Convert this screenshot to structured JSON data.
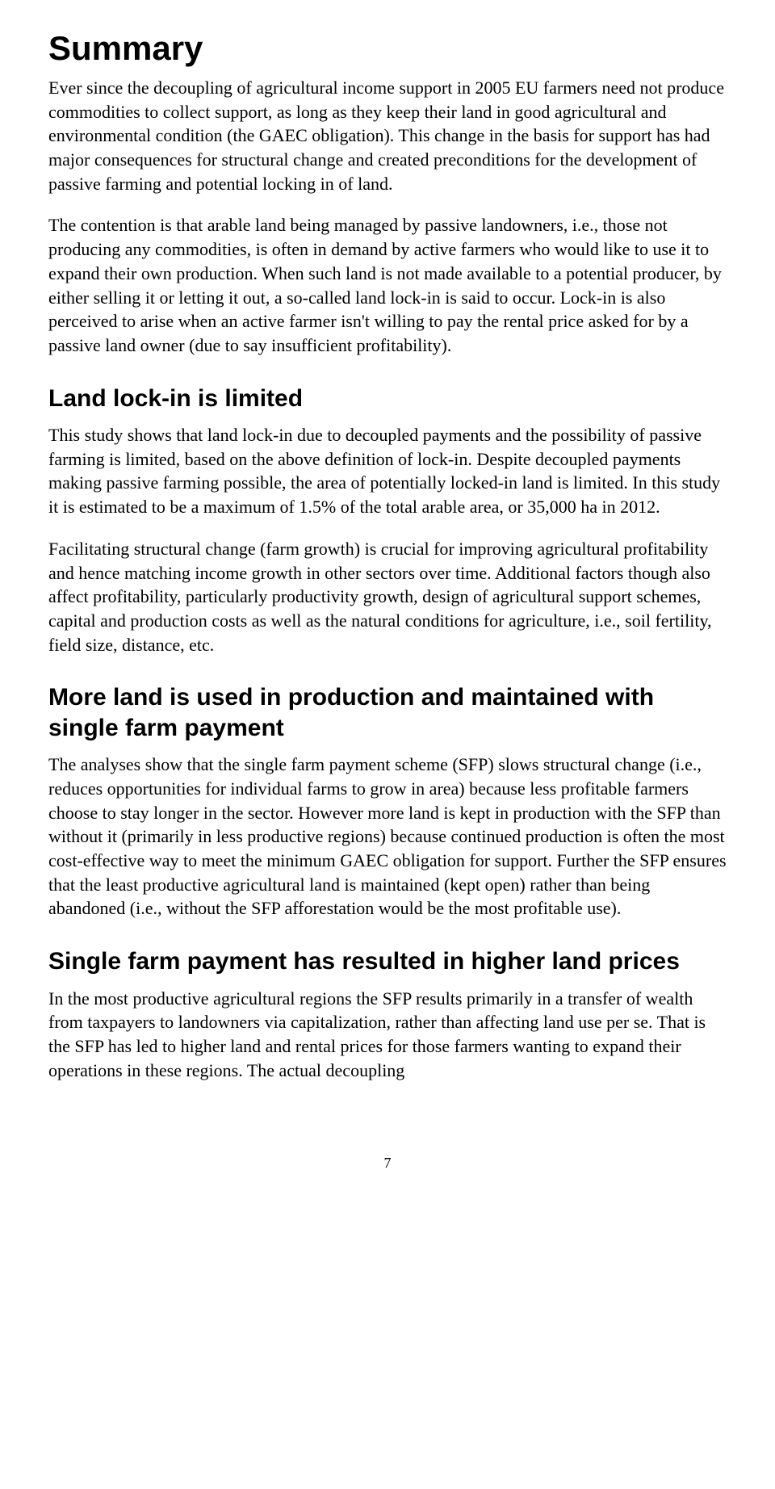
{
  "page": {
    "number": "7",
    "background_color": "#ffffff",
    "text_color": "#000000"
  },
  "typography": {
    "heading_font": "Segoe UI, Myriad Pro, Arial, sans-serif",
    "body_font": "Georgia, Times New Roman, serif",
    "title_size_pt": 32,
    "section_size_pt": 22,
    "body_size_pt": 16
  },
  "title": "Summary",
  "paragraphs": {
    "intro_1": "Ever since the decoupling of agricultural income support in 2005 EU farmers need not produce commodities to collect support, as long as they keep their land in good agricultural and environmental condition (the GAEC obligation). This change in the basis for support has had major consequences for structural change and created preconditions for the development of passive farming and potential locking in of land.",
    "intro_2": "The contention is that arable land being managed by passive landowners, i.e., those not producing any commodities, is often in demand by active farmers who would like to use it to expand their own production. When such land is not made available to a potential producer, by either selling it or letting it out, a so-called land lock-in is said to occur. Lock-in is also perceived to arise when an active farmer isn't willing to pay the rental price asked for by a passive land owner (due to say insufficient profitability)."
  },
  "sections": [
    {
      "heading": "Land lock-in is limited",
      "paras": [
        "This study shows that land lock-in due to decoupled payments and the possibility of passive farming is limited, based on the above definition of lock-in. Despite decoupled payments making passive farming possible, the area of potentially locked-in land is limited. In this study it is estimated to be a maximum of 1.5% of the total arable area, or 35,000 ha in 2012.",
        "Facilitating structural change (farm growth) is crucial for improving agricultural profitability and hence matching income growth in other sectors over time. Additional factors though also affect profitability, particularly productivity growth, design of agricultural support schemes, capital and production costs as well as the natural conditions for agriculture, i.e., soil fertility, field size, distance, etc."
      ]
    },
    {
      "heading": "More land is used in production and maintained with single farm payment",
      "paras": [
        "The analyses show that the single farm payment scheme (SFP) slows structural change (i.e., reduces opportunities for individual farms to grow in area) because less profitable farmers choose to stay longer in the sector. However more land is kept in production with the SFP than without it (primarily in less productive regions) because continued production is often the most cost-effective way to meet the minimum GAEC obligation for support. Further the SFP ensures that the least productive agricultural land is maintained (kept open) rather than being abandoned (i.e., without the SFP afforestation would be the most profitable use)."
      ]
    },
    {
      "heading": "Single farm payment has resulted in higher land prices",
      "paras": [
        "In the most productive agricultural regions the SFP results primarily in a transfer of wealth from taxpayers to landowners via capitalization, rather than affecting land use per se. That is the SFP has led to higher land and rental prices for those farmers wanting to expand their operations in these regions. The actual decoupling"
      ]
    }
  ]
}
